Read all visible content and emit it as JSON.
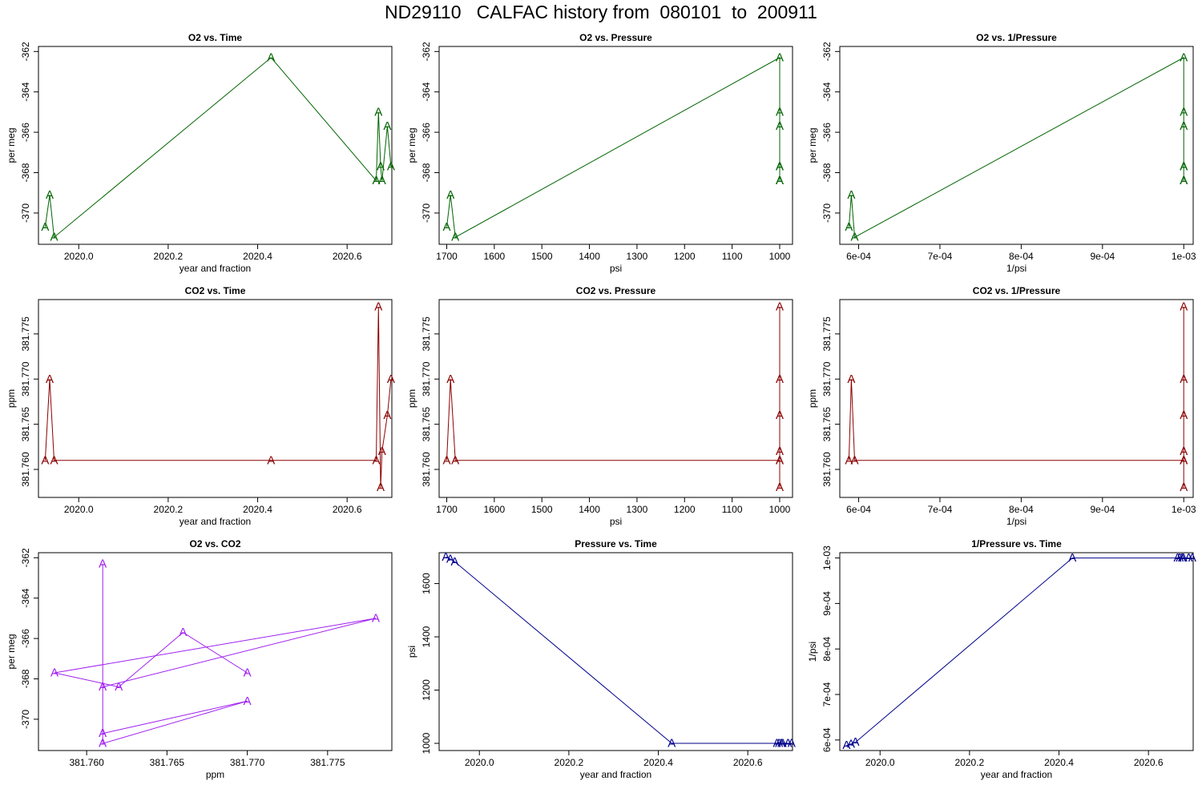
{
  "page": {
    "title": "ND29110   CALFAC history from  080101  to  200911"
  },
  "colors": {
    "o2": "#006400",
    "co2": "#8b0000",
    "o2co2": "#a020f0",
    "pressure": "#00008b"
  },
  "chart_data": [
    {
      "type": "line",
      "title": "O2 vs. Time",
      "xlabel": "year and fraction",
      "ylabel": "per meg",
      "marker": "A",
      "color_key": "o2",
      "xlim": [
        2019.91,
        2020.7
      ],
      "ylim": [
        -371.55,
        -361.75
      ],
      "xticks": [
        2020.0,
        2020.2,
        2020.4,
        2020.6
      ],
      "xtick_labels": [
        "2020.0",
        "2020.2",
        "2020.4",
        "2020.6"
      ],
      "yticks": [
        -370,
        -368,
        -366,
        -364,
        -362
      ],
      "ytick_labels": [
        "-370",
        "-368",
        "-366",
        "-364",
        "-362"
      ],
      "points": [
        [
          2019.925,
          -370.7
        ],
        [
          2019.935,
          -369.1
        ],
        [
          2019.945,
          -371.2
        ],
        [
          2020.43,
          -362.3
        ],
        [
          2020.665,
          -368.4
        ],
        [
          2020.67,
          -365.0
        ],
        [
          2020.675,
          -367.7
        ],
        [
          2020.678,
          -368.4
        ],
        [
          2020.69,
          -365.7
        ],
        [
          2020.698,
          -367.7
        ]
      ]
    },
    {
      "type": "line",
      "title": "O2 vs. Pressure",
      "xlabel": "psi",
      "ylabel": "per meg",
      "marker": "A",
      "color_key": "o2",
      "xlim": [
        1716,
        973
      ],
      "ylim": [
        -371.55,
        -361.75
      ],
      "xticks": [
        1700,
        1600,
        1500,
        1400,
        1300,
        1200,
        1100,
        1000
      ],
      "xtick_labels": [
        "1700",
        "1600",
        "1500",
        "1400",
        "1300",
        "1200",
        "1100",
        "1000"
      ],
      "yticks": [
        -370,
        -368,
        -366,
        -364,
        -362
      ],
      "ytick_labels": [
        "-370",
        "-368",
        "-366",
        "-364",
        "-362"
      ],
      "points": [
        [
          1700,
          -370.7
        ],
        [
          1692,
          -369.1
        ],
        [
          1682,
          -371.2
        ],
        [
          1000,
          -362.3
        ],
        [
          1000,
          -368.4
        ],
        [
          1000,
          -365.0
        ],
        [
          1000,
          -367.7
        ],
        [
          1000,
          -368.4
        ],
        [
          1000,
          -365.7
        ],
        [
          1000,
          -367.7
        ]
      ]
    },
    {
      "type": "line",
      "title": "O2 vs. 1/Pressure",
      "xlabel": "1/psi",
      "ylabel": "per meg",
      "marker": "A",
      "color_key": "o2",
      "xlim": [
        0.0005768,
        0.0010116
      ],
      "ylim": [
        -371.55,
        -361.75
      ],
      "xticks": [
        0.0006,
        0.0007,
        0.0008,
        0.0009,
        0.001
      ],
      "xtick_labels": [
        "6e-04",
        "7e-04",
        "8e-04",
        "9e-04",
        "1e-03"
      ],
      "yticks": [
        -370,
        -368,
        -366,
        -364,
        -362
      ],
      "ytick_labels": [
        "-370",
        "-368",
        "-366",
        "-364",
        "-362"
      ],
      "points": [
        [
          0.000588,
          -370.7
        ],
        [
          0.000591,
          -369.1
        ],
        [
          0.000595,
          -371.2
        ],
        [
          0.001,
          -362.3
        ],
        [
          0.001,
          -368.4
        ],
        [
          0.001,
          -365.0
        ],
        [
          0.001,
          -367.7
        ],
        [
          0.001,
          -368.4
        ],
        [
          0.001,
          -365.7
        ],
        [
          0.001,
          -367.7
        ]
      ]
    },
    {
      "type": "line",
      "title": "CO2 vs. Time",
      "xlabel": "year and fraction",
      "ylabel": "ppm",
      "marker": "A",
      "color_key": "co2",
      "xlim": [
        2019.91,
        2020.7
      ],
      "ylim": [
        381.7569,
        381.7788
      ],
      "xticks": [
        2020.0,
        2020.2,
        2020.4,
        2020.6
      ],
      "xtick_labels": [
        "2020.0",
        "2020.2",
        "2020.4",
        "2020.6"
      ],
      "yticks": [
        381.76,
        381.765,
        381.77,
        381.775
      ],
      "ytick_labels": [
        "381.760",
        "381.765",
        "381.770",
        "381.775"
      ],
      "points": [
        [
          2019.925,
          381.761
        ],
        [
          2019.935,
          381.77
        ],
        [
          2019.945,
          381.761
        ],
        [
          2020.43,
          381.761
        ],
        [
          2020.665,
          381.761
        ],
        [
          2020.67,
          381.778
        ],
        [
          2020.675,
          381.758
        ],
        [
          2020.678,
          381.762
        ],
        [
          2020.69,
          381.766
        ],
        [
          2020.698,
          381.77
        ]
      ]
    },
    {
      "type": "line",
      "title": "CO2 vs. Pressure",
      "xlabel": "psi",
      "ylabel": "ppm",
      "marker": "A",
      "color_key": "co2",
      "xlim": [
        1716,
        973
      ],
      "ylim": [
        381.7569,
        381.7788
      ],
      "xticks": [
        1700,
        1600,
        1500,
        1400,
        1300,
        1200,
        1100,
        1000
      ],
      "xtick_labels": [
        "1700",
        "1600",
        "1500",
        "1400",
        "1300",
        "1200",
        "1100",
        "1000"
      ],
      "yticks": [
        381.76,
        381.765,
        381.77,
        381.775
      ],
      "ytick_labels": [
        "381.760",
        "381.765",
        "381.770",
        "381.775"
      ],
      "points": [
        [
          1700,
          381.761
        ],
        [
          1692,
          381.77
        ],
        [
          1682,
          381.761
        ],
        [
          1000,
          381.761
        ],
        [
          1000,
          381.761
        ],
        [
          1000,
          381.778
        ],
        [
          1000,
          381.758
        ],
        [
          1000,
          381.762
        ],
        [
          1000,
          381.766
        ],
        [
          1000,
          381.77
        ]
      ]
    },
    {
      "type": "line",
      "title": "CO2 vs. 1/Pressure",
      "xlabel": "1/psi",
      "ylabel": "ppm",
      "marker": "A",
      "color_key": "co2",
      "xlim": [
        0.0005768,
        0.0010116
      ],
      "ylim": [
        381.7569,
        381.7788
      ],
      "xticks": [
        0.0006,
        0.0007,
        0.0008,
        0.0009,
        0.001
      ],
      "xtick_labels": [
        "6e-04",
        "7e-04",
        "8e-04",
        "9e-04",
        "1e-03"
      ],
      "yticks": [
        381.76,
        381.765,
        381.77,
        381.775
      ],
      "ytick_labels": [
        "381.760",
        "381.765",
        "381.770",
        "381.775"
      ],
      "points": [
        [
          0.000588,
          381.761
        ],
        [
          0.000591,
          381.77
        ],
        [
          0.000595,
          381.761
        ],
        [
          0.001,
          381.761
        ],
        [
          0.001,
          381.761
        ],
        [
          0.001,
          381.778
        ],
        [
          0.001,
          381.758
        ],
        [
          0.001,
          381.762
        ],
        [
          0.001,
          381.766
        ],
        [
          0.001,
          381.77
        ]
      ]
    },
    {
      "type": "line",
      "title": "O2 vs. CO2",
      "xlabel": "ppm",
      "ylabel": "per meg",
      "marker": "A",
      "color_key": "o2co2",
      "xlim": [
        381.757,
        381.779
      ],
      "ylim": [
        -371.55,
        -361.75
      ],
      "xticks": [
        381.76,
        381.765,
        381.77,
        381.775
      ],
      "xtick_labels": [
        "381.760",
        "381.765",
        "381.770",
        "381.775"
      ],
      "yticks": [
        -370,
        -368,
        -366,
        -364,
        -362
      ],
      "ytick_labels": [
        "-370",
        "-368",
        "-366",
        "-364",
        "-362"
      ],
      "points": [
        [
          381.761,
          -370.7
        ],
        [
          381.77,
          -369.1
        ],
        [
          381.761,
          -371.2
        ],
        [
          381.761,
          -362.3
        ],
        [
          381.761,
          -368.4
        ],
        [
          381.778,
          -365.0
        ],
        [
          381.758,
          -367.7
        ],
        [
          381.762,
          -368.4
        ],
        [
          381.766,
          -365.7
        ],
        [
          381.77,
          -367.7
        ]
      ]
    },
    {
      "type": "line",
      "title": "Pressure vs. Time",
      "xlabel": "year and fraction",
      "ylabel": "psi",
      "marker": "A",
      "color_key": "pressure",
      "xlim": [
        2019.91,
        2020.7
      ],
      "ylim": [
        973,
        1716
      ],
      "xticks": [
        2020.0,
        2020.2,
        2020.4,
        2020.6
      ],
      "xtick_labels": [
        "2020.0",
        "2020.2",
        "2020.4",
        "2020.6"
      ],
      "yticks": [
        1000,
        1200,
        1400,
        1600
      ],
      "ytick_labels": [
        "1000",
        "1200",
        "1400",
        "1600"
      ],
      "points": [
        [
          2019.925,
          1700
        ],
        [
          2019.935,
          1692
        ],
        [
          2019.945,
          1682
        ],
        [
          2020.43,
          1000
        ],
        [
          2020.665,
          1000
        ],
        [
          2020.67,
          1000
        ],
        [
          2020.675,
          1000
        ],
        [
          2020.678,
          1000
        ],
        [
          2020.69,
          1000
        ],
        [
          2020.698,
          1000
        ]
      ]
    },
    {
      "type": "line",
      "title": "1/Pressure vs. Time",
      "xlabel": "year and fraction",
      "ylabel": "1/psi",
      "marker": "A",
      "color_key": "pressure",
      "xlim": [
        2019.91,
        2020.7
      ],
      "ylim": [
        0.0005768,
        0.0010116
      ],
      "xticks": [
        2020.0,
        2020.2,
        2020.4,
        2020.6
      ],
      "xtick_labels": [
        "2020.0",
        "2020.2",
        "2020.4",
        "2020.6"
      ],
      "yticks": [
        0.0006,
        0.0007,
        0.0008,
        0.0009,
        0.001
      ],
      "ytick_labels": [
        "6e-04",
        "7e-04",
        "8e-04",
        "9e-04",
        "1e-03"
      ],
      "points": [
        [
          2019.925,
          0.000588
        ],
        [
          2019.935,
          0.000591
        ],
        [
          2019.945,
          0.000595
        ],
        [
          2020.43,
          0.001
        ],
        [
          2020.665,
          0.001
        ],
        [
          2020.67,
          0.001
        ],
        [
          2020.675,
          0.001
        ],
        [
          2020.678,
          0.001
        ],
        [
          2020.69,
          0.001
        ],
        [
          2020.698,
          0.001
        ]
      ]
    }
  ]
}
